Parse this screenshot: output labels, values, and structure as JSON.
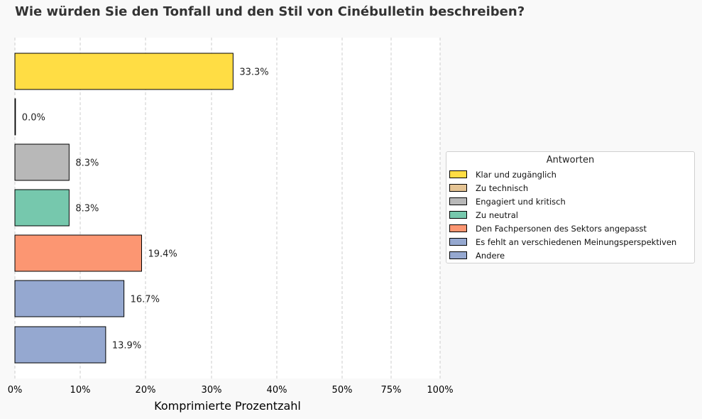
{
  "title": "Wie würden Sie den Tonfall und den Stil von Cinébulletin beschreiben?",
  "chart_data": {
    "type": "bar",
    "orientation": "horizontal",
    "categories": [
      "Klar und zugänglich",
      "Zu technisch",
      "Engagiert und kritisch",
      "Zu neutral",
      "Den Fachpersonen des Sektors angepasst",
      "Es fehlt an verschiedenen Meinungsperspektiven",
      "Andere"
    ],
    "values": [
      33.3,
      0.0,
      8.3,
      8.3,
      19.4,
      16.7,
      13.9
    ],
    "value_labels": [
      "33.3%",
      "0.0%",
      "8.3%",
      "8.3%",
      "19.4%",
      "16.7%",
      "13.9%"
    ],
    "colors": [
      "#ffdd44",
      "#e5c494",
      "#b8b8b8",
      "#76c8ad",
      "#fc9672",
      "#95a8d0",
      "#95a8d0"
    ],
    "xlabel": "Komprimierte Prozentzahl",
    "ylabel": "",
    "xticks": [
      0,
      10,
      20,
      30,
      40,
      50,
      75,
      100
    ],
    "xtick_labels": [
      "0%",
      "10%",
      "20%",
      "30%",
      "40%",
      "50%",
      "75%",
      "100%"
    ],
    "xscale": "compressed",
    "grid": "vertical dashed",
    "legend_title": "Antworten",
    "legend_position": "center-right"
  }
}
